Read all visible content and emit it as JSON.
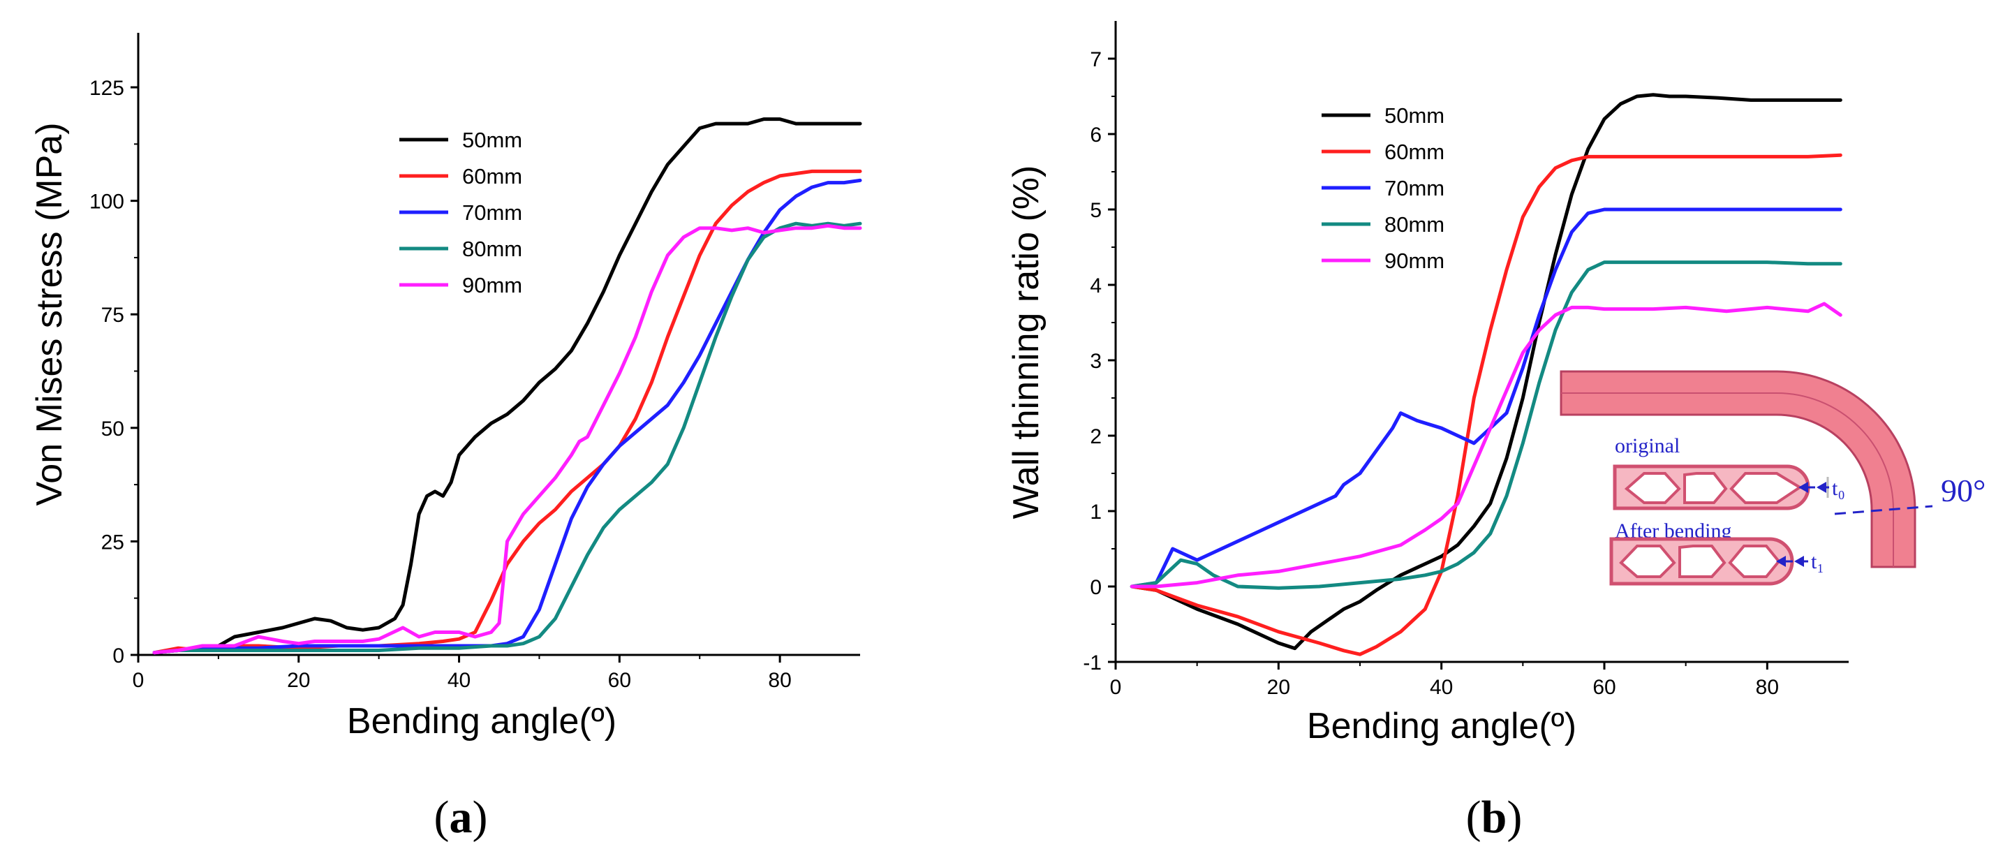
{
  "chart_data": [
    {
      "type": "line",
      "panel": "a",
      "caption": {
        "open": "(",
        "letter": "a",
        "close": ")"
      },
      "xlabel": "Bending angle(º)",
      "ylabel": "Von Mises stress (MPa)",
      "xlim": [
        0,
        90
      ],
      "ylim": [
        0,
        137
      ],
      "xticks": [
        0,
        20,
        40,
        60,
        80
      ],
      "yticks": [
        0,
        25,
        50,
        75,
        100,
        125
      ],
      "legend_position": "upper-middle",
      "series": [
        {
          "name": "50mm",
          "color": "#000000",
          "x": [
            2,
            5,
            8,
            10,
            12,
            15,
            18,
            20,
            22,
            24,
            26,
            28,
            30,
            32,
            33,
            34,
            35,
            36,
            37,
            38,
            39,
            40,
            42,
            44,
            46,
            48,
            50,
            52,
            54,
            56,
            58,
            60,
            62,
            64,
            66,
            68,
            70,
            72,
            74,
            76,
            78,
            80,
            82,
            84,
            86,
            88,
            90
          ],
          "y": [
            0.5,
            1,
            1,
            2,
            4,
            5,
            6,
            7,
            8,
            7.5,
            6,
            5.5,
            6,
            8,
            11,
            20,
            31,
            35,
            36,
            35,
            38,
            44,
            48,
            51,
            53,
            56,
            60,
            63,
            67,
            73,
            80,
            88,
            95,
            102,
            108,
            112,
            116,
            117,
            117,
            117,
            118,
            118,
            117,
            117,
            117,
            117,
            117
          ]
        },
        {
          "name": "60mm",
          "color": "#ff1f1f",
          "x": [
            2,
            5,
            8,
            10,
            15,
            20,
            25,
            30,
            35,
            38,
            40,
            42,
            44,
            46,
            48,
            50,
            52,
            54,
            56,
            58,
            60,
            62,
            64,
            66,
            68,
            70,
            72,
            74,
            76,
            78,
            80,
            82,
            84,
            86,
            88,
            90
          ],
          "y": [
            0.5,
            1.5,
            1,
            2,
            2,
            1.5,
            2,
            2,
            2.5,
            3,
            3.5,
            5,
            12,
            20,
            25,
            29,
            32,
            36,
            39,
            42,
            46,
            52,
            60,
            70,
            79,
            88,
            95,
            99,
            102,
            104,
            105.5,
            106,
            106.5,
            106.5,
            106.5,
            106.5
          ]
        },
        {
          "name": "70mm",
          "color": "#1f1fff",
          "x": [
            2,
            5,
            10,
            15,
            20,
            25,
            30,
            35,
            40,
            44,
            46,
            48,
            50,
            52,
            54,
            56,
            58,
            60,
            62,
            64,
            66,
            68,
            70,
            72,
            74,
            76,
            78,
            80,
            82,
            84,
            86,
            88,
            90
          ],
          "y": [
            0.5,
            1,
            1.5,
            1.5,
            2,
            2,
            2,
            2,
            2,
            2,
            2.5,
            4,
            10,
            20,
            30,
            37,
            42,
            46,
            49,
            52,
            55,
            60,
            66,
            73,
            80,
            87,
            93,
            98,
            101,
            103,
            104,
            104,
            104.5
          ]
        },
        {
          "name": "80mm",
          "color": "#138a82",
          "x": [
            2,
            5,
            10,
            15,
            20,
            25,
            30,
            35,
            40,
            44,
            46,
            48,
            50,
            52,
            54,
            56,
            58,
            60,
            62,
            64,
            66,
            68,
            70,
            72,
            74,
            76,
            78,
            80,
            82,
            84,
            86,
            88,
            90
          ],
          "y": [
            0.5,
            1,
            1,
            1,
            1,
            1,
            1,
            1.5,
            1.5,
            2,
            2,
            2.5,
            4,
            8,
            15,
            22,
            28,
            32,
            35,
            38,
            42,
            50,
            60,
            70,
            79,
            87,
            92,
            94,
            95,
            94.5,
            95,
            94.5,
            95
          ]
        },
        {
          "name": "90mm",
          "color": "#ff1fff",
          "x": [
            2,
            5,
            8,
            10,
            12,
            15,
            18,
            20,
            22,
            25,
            28,
            30,
            33,
            35,
            37,
            40,
            42,
            44,
            45,
            46,
            48,
            50,
            52,
            54,
            55,
            56,
            58,
            60,
            62,
            64,
            66,
            68,
            70,
            72,
            74,
            76,
            78,
            80,
            82,
            84,
            86,
            88,
            90
          ],
          "y": [
            0.5,
            1,
            2,
            2,
            2,
            4,
            3,
            2.5,
            3,
            3,
            3,
            3.5,
            6,
            4,
            5,
            5,
            4,
            5,
            7,
            25,
            31,
            35,
            39,
            44,
            47,
            48,
            55,
            62,
            70,
            80,
            88,
            92,
            94,
            94,
            93.5,
            94,
            93,
            93.5,
            94,
            94,
            94.5,
            94,
            94
          ]
        }
      ]
    },
    {
      "type": "line",
      "panel": "b",
      "caption": {
        "open": "(",
        "letter": "b",
        "close": ")"
      },
      "xlabel": "Bending angle(º)",
      "ylabel": "Wall thinning ratio (%)",
      "xlim": [
        0,
        90
      ],
      "ylim": [
        -1,
        7.5
      ],
      "xticks": [
        0,
        20,
        40,
        60,
        80
      ],
      "yticks": [
        -1,
        0,
        1,
        2,
        3,
        4,
        5,
        6,
        7
      ],
      "legend_position": "upper-left",
      "series": [
        {
          "name": "50mm",
          "color": "#000000",
          "x": [
            2,
            5,
            10,
            15,
            20,
            22,
            24,
            26,
            28,
            30,
            32,
            35,
            38,
            40,
            42,
            44,
            46,
            48,
            50,
            52,
            54,
            56,
            58,
            60,
            62,
            64,
            66,
            68,
            70,
            74,
            78,
            82,
            86,
            89
          ],
          "y": [
            0,
            -0.05,
            -0.3,
            -0.5,
            -0.75,
            -0.82,
            -0.6,
            -0.45,
            -0.3,
            -0.2,
            -0.05,
            0.15,
            0.3,
            0.4,
            0.55,
            0.8,
            1.1,
            1.7,
            2.5,
            3.5,
            4.4,
            5.2,
            5.8,
            6.2,
            6.4,
            6.5,
            6.52,
            6.5,
            6.5,
            6.48,
            6.45,
            6.45,
            6.45,
            6.45
          ]
        },
        {
          "name": "60mm",
          "color": "#ff1f1f",
          "x": [
            2,
            5,
            10,
            15,
            20,
            25,
            28,
            30,
            32,
            35,
            38,
            40,
            42,
            44,
            46,
            48,
            50,
            52,
            54,
            56,
            58,
            60,
            62,
            66,
            70,
            75,
            80,
            85,
            89
          ],
          "y": [
            0,
            -0.05,
            -0.25,
            -0.4,
            -0.6,
            -0.75,
            -0.85,
            -0.9,
            -0.8,
            -0.6,
            -0.3,
            0.2,
            1.2,
            2.5,
            3.4,
            4.2,
            4.9,
            5.3,
            5.55,
            5.65,
            5.7,
            5.7,
            5.7,
            5.7,
            5.7,
            5.7,
            5.7,
            5.7,
            5.72
          ]
        },
        {
          "name": "70mm",
          "color": "#1f1fff",
          "x": [
            2,
            5,
            7,
            8,
            10,
            12,
            15,
            18,
            20,
            22,
            25,
            27,
            28,
            30,
            32,
            34,
            35,
            37,
            40,
            42,
            44,
            46,
            48,
            50,
            52,
            54,
            56,
            58,
            60,
            62,
            66,
            70,
            75,
            80,
            85,
            89
          ],
          "y": [
            0,
            0.05,
            0.5,
            0.45,
            0.35,
            0.45,
            0.6,
            0.75,
            0.85,
            0.95,
            1.1,
            1.2,
            1.35,
            1.5,
            1.8,
            2.1,
            2.3,
            2.2,
            2.1,
            2.0,
            1.9,
            2.1,
            2.3,
            2.9,
            3.6,
            4.2,
            4.7,
            4.95,
            5.0,
            5.0,
            5.0,
            5.0,
            5.0,
            5.0,
            5.0,
            5.0
          ]
        },
        {
          "name": "80mm",
          "color": "#138a82",
          "x": [
            2,
            5,
            8,
            10,
            12,
            15,
            20,
            25,
            30,
            35,
            38,
            40,
            42,
            44,
            46,
            48,
            50,
            52,
            54,
            56,
            58,
            60,
            62,
            66,
            70,
            75,
            80,
            85,
            89
          ],
          "y": [
            0,
            0.05,
            0.35,
            0.3,
            0.15,
            0,
            -0.02,
            0,
            0.05,
            0.1,
            0.15,
            0.2,
            0.3,
            0.45,
            0.7,
            1.2,
            1.9,
            2.7,
            3.4,
            3.9,
            4.2,
            4.3,
            4.3,
            4.3,
            4.3,
            4.3,
            4.3,
            4.28,
            4.28
          ]
        },
        {
          "name": "90mm",
          "color": "#ff1fff",
          "x": [
            2,
            5,
            10,
            15,
            20,
            25,
            30,
            35,
            38,
            40,
            42,
            44,
            46,
            48,
            50,
            52,
            54,
            56,
            58,
            60,
            62,
            66,
            70,
            75,
            80,
            85,
            87,
            89
          ],
          "y": [
            0,
            0,
            0.05,
            0.15,
            0.2,
            0.3,
            0.4,
            0.55,
            0.75,
            0.9,
            1.1,
            1.6,
            2.1,
            2.6,
            3.1,
            3.4,
            3.6,
            3.7,
            3.7,
            3.68,
            3.68,
            3.68,
            3.7,
            3.65,
            3.7,
            3.65,
            3.75,
            3.6
          ]
        }
      ],
      "inset": {
        "original_label": "original",
        "after_label": "After bending",
        "t0_label": "t₀",
        "t1_label": "t₁",
        "angle_label": "90°",
        "tube_color": "#f08090",
        "label_color": "#2323c8"
      }
    }
  ]
}
